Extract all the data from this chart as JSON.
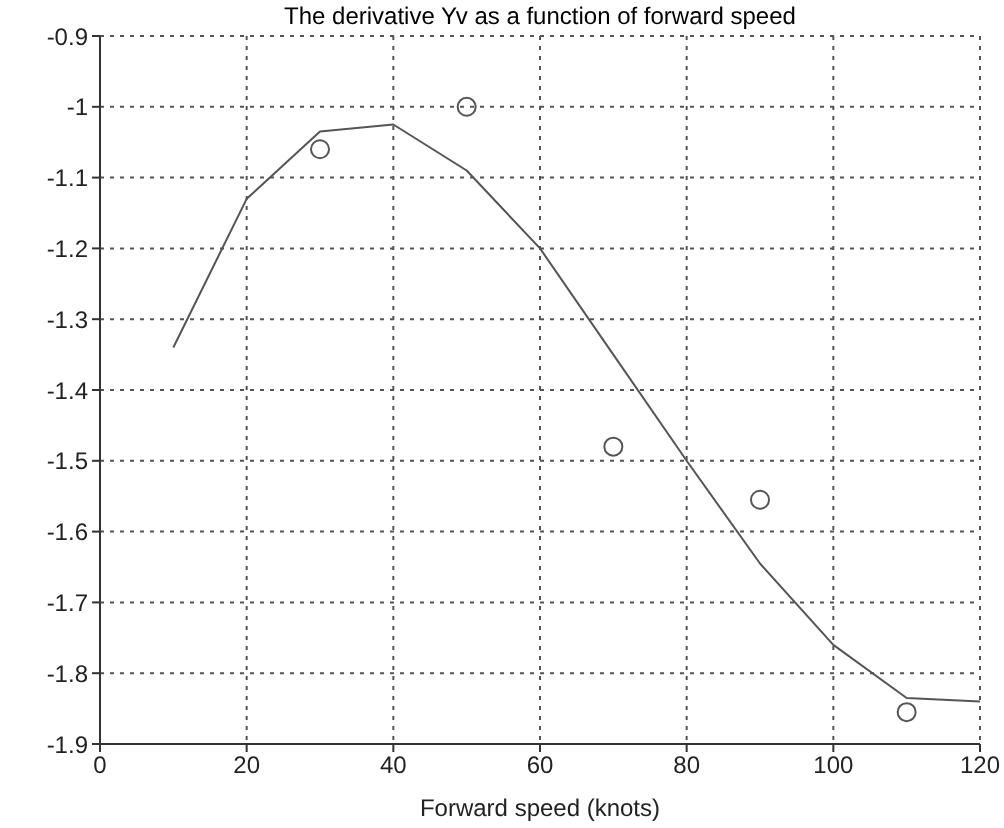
{
  "chart_data": {
    "type": "line",
    "title": "The derivative Yv as a function of forward speed",
    "xlabel": "Forward speed (knots)",
    "xlim": [
      0,
      120
    ],
    "xticks": [
      0,
      20,
      40,
      60,
      80,
      100,
      120
    ],
    "ylim": [
      -1.9,
      -0.9
    ],
    "yticks": [
      -1.9,
      -1.8,
      -1.7,
      -1.6,
      -1.5,
      -1.4,
      -1.3,
      -1.2,
      -1.1,
      -1,
      -0.9
    ],
    "grid": true,
    "series": [
      {
        "color": "#555555",
        "marker": "none",
        "x": [
          10,
          20,
          30,
          40,
          50,
          60,
          70,
          80,
          90,
          100,
          110,
          120
        ],
        "values": [
          -1.34,
          -1.13,
          -1.035,
          -1.025,
          -1.09,
          -1.2,
          -1.35,
          -1.5,
          -1.645,
          -1.76,
          -1.835,
          -1.84
        ]
      },
      {
        "type": "scatter",
        "color": "#555555",
        "marker": "circle",
        "x": [
          30,
          50,
          70,
          90,
          110
        ],
        "values": [
          -1.06,
          -1.0,
          -1.48,
          -1.555,
          -1.855
        ]
      }
    ]
  }
}
